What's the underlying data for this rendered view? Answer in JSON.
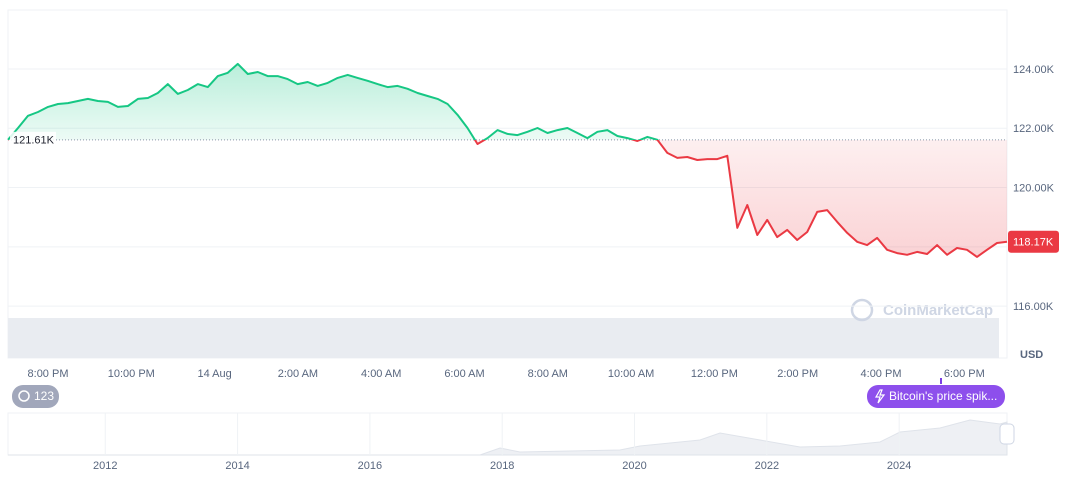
{
  "chart_data": {
    "type": "line",
    "values": [
      121610,
      122010,
      122420,
      122550,
      122720,
      122820,
      122850,
      122920,
      122990,
      122920,
      122890,
      122720,
      122750,
      122990,
      123020,
      123190,
      123490,
      123160,
      123290,
      123490,
      123390,
      123760,
      123870,
      124170,
      123830,
      123900,
      123760,
      123760,
      123660,
      123490,
      123560,
      123430,
      123530,
      123700,
      123800,
      123700,
      123600,
      123490,
      123390,
      123430,
      123330,
      123190,
      123090,
      122990,
      122820,
      122450,
      122010,
      121470,
      121670,
      121940,
      121810,
      121770,
      121880,
      122010,
      121840,
      121940,
      122010,
      121840,
      121670,
      121880,
      121940,
      121740,
      121670,
      121570,
      121710,
      121610,
      121170,
      121000,
      121030,
      120930,
      120960,
      120960,
      121070,
      118640,
      119410,
      118400,
      118910,
      118330,
      118570,
      118230,
      118500,
      119180,
      119240,
      118840,
      118470,
      118170,
      118060,
      118300,
      117900,
      117790,
      117730,
      117830,
      117760,
      118060,
      117730,
      117960,
      117900,
      117660,
      117900,
      118130,
      118170
    ],
    "up_color": "#16c784",
    "down_color": "#ea3943",
    "baseline": 121610,
    "baseline_label": "121.61K",
    "current_label": "118.17K",
    "ylim": [
      114250,
      125990
    ],
    "yticks": [
      {
        "value": 116000,
        "label": "116.00K"
      },
      {
        "value": 118000,
        "label": "118.00K"
      },
      {
        "value": 120000,
        "label": "120.00K"
      },
      {
        "value": 122000,
        "label": "122.00K"
      },
      {
        "value": 124000,
        "label": "124.00K"
      }
    ],
    "xtick_labels": [
      "8:00 PM",
      "10:00 PM",
      "14 Aug",
      "2:00 AM",
      "4:00 AM",
      "6:00 AM",
      "8:00 AM",
      "10:00 AM",
      "12:00 PM",
      "2:00 PM",
      "4:00 PM",
      "6:00 PM"
    ],
    "currency": "USD",
    "grid": true
  },
  "watermark": "CoinMarketCap",
  "badge": "123",
  "event_button": "Bitcoin's price spik...",
  "navigator": {
    "xlim": [
      2010.53,
      2025.63
    ],
    "xticks": [
      2012,
      2014,
      2016,
      2018,
      2020,
      2022,
      2024
    ]
  }
}
